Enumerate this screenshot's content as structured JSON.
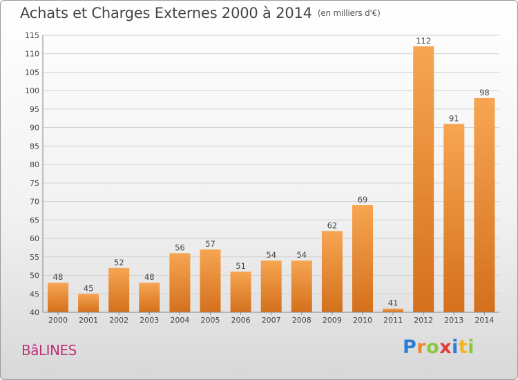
{
  "header": {
    "title": "Achats et Charges Externes 2000 à 2014",
    "unit": "(en milliers d'€)"
  },
  "footer": {
    "commune": "BâLINES",
    "brand_letters": [
      {
        "ch": "P",
        "color": "#2a7fd4"
      },
      {
        "ch": "r",
        "color": "#e8882c"
      },
      {
        "ch": "o",
        "color": "#8cc63f"
      },
      {
        "ch": "x",
        "color": "#e03c3c"
      },
      {
        "ch": "i",
        "color": "#2a7fd4"
      },
      {
        "ch": "t",
        "color": "#f2b61b"
      },
      {
        "ch": "i",
        "color": "#8cc63f"
      }
    ]
  },
  "colors": {
    "bar_light": "#f7a552",
    "bar_dark": "#d4701c",
    "grid": "#cfcfcf",
    "axis": "#888888"
  },
  "chart_data": {
    "type": "bar",
    "title": "Achats et Charges Externes 2000 à 2014",
    "xlabel": "",
    "ylabel": "",
    "categories": [
      "2000",
      "2001",
      "2002",
      "2003",
      "2004",
      "2005",
      "2006",
      "2007",
      "2008",
      "2009",
      "2010",
      "2011",
      "2012",
      "2013",
      "2014"
    ],
    "values": [
      48,
      45,
      52,
      48,
      56,
      57,
      51,
      54,
      54,
      62,
      69,
      41,
      112,
      91,
      98
    ],
    "ylim": [
      40,
      115
    ],
    "yticks": [
      40,
      45,
      50,
      55,
      60,
      65,
      70,
      75,
      80,
      85,
      90,
      95,
      100,
      105,
      110,
      115
    ],
    "grid": true,
    "data_labels": true
  }
}
